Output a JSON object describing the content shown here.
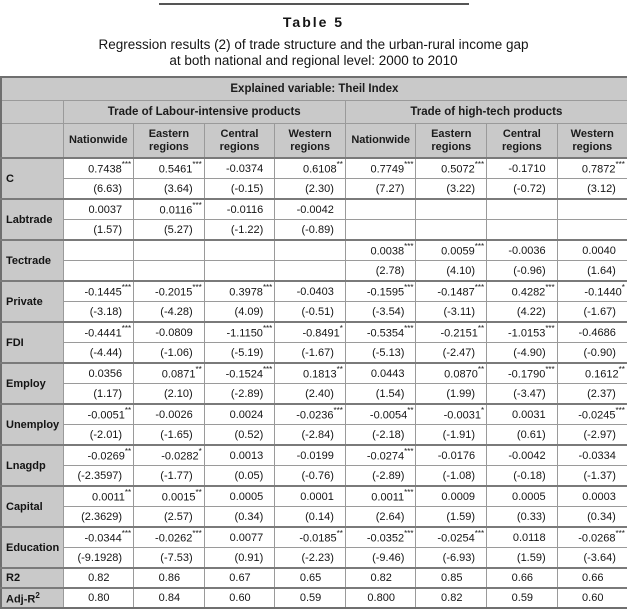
{
  "page": {
    "title": "Table 5",
    "subtitle_line1": "Regression results (2) of trade structure and the urban-rural income gap",
    "subtitle_line2": "at both national and regional level: 2000 to 2010"
  },
  "table": {
    "explained_header": "Explained variable: Theil Index",
    "groups": [
      "Trade of Labour-intensive products",
      "Trade of high-tech products"
    ],
    "columns": [
      "Nationwide",
      "Eastern regions",
      "Central regions",
      "Western regions",
      "Nationwide",
      "Eastern regions",
      "Central regions",
      "Western regions"
    ],
    "rows": [
      {
        "label": "C",
        "coef": [
          "0.7438***",
          "0.5461***",
          "-0.0374",
          "0.6108**",
          "0.7749***",
          "0.5072***",
          "-0.1710",
          "0.7872***"
        ],
        "tstat": [
          "(6.63)",
          "(3.64)",
          "(-0.15)",
          "(2.30)",
          "(7.27)",
          "(3.22)",
          "(-0.72)",
          "(3.12)"
        ]
      },
      {
        "label": "Labtrade",
        "coef": [
          "0.0037",
          "0.0116***",
          "-0.0116",
          "-0.0042",
          "",
          "",
          "",
          ""
        ],
        "tstat": [
          "(1.57)",
          "(5.27)",
          "(-1.22)",
          "(-0.89)",
          "",
          "",
          "",
          ""
        ]
      },
      {
        "label": "Tectrade",
        "coef": [
          "",
          "",
          "",
          "",
          "0.0038***",
          "0.0059***",
          "-0.0036",
          "0.0040"
        ],
        "tstat": [
          "",
          "",
          "",
          "",
          "(2.78)",
          "(4.10)",
          "(-0.96)",
          "(1.64)"
        ]
      },
      {
        "label": "Private",
        "coef": [
          "-0.1445***",
          "-0.2015***",
          "0.3978***",
          "-0.0403",
          "-0.1595***",
          "-0.1487***",
          "0.4282***",
          "-0.1440*"
        ],
        "tstat": [
          "(-3.18)",
          "(-4.28)",
          "(4.09)",
          "(-0.51)",
          "(-3.54)",
          "(-3.11)",
          "(4.22)",
          "(-1.67)"
        ]
      },
      {
        "label": "FDI",
        "coef": [
          "-0.4441***",
          "-0.0809",
          "-1.1150***",
          "-0.8491*",
          "-0.5354***",
          "-0.2151**",
          "-1.0153***",
          "-0.4686"
        ],
        "tstat": [
          "(-4.44)",
          "(-1.06)",
          "(-5.19)",
          "(-1.67)",
          "(-5.13)",
          "(-2.47)",
          "(-4.90)",
          "(-0.90)"
        ]
      },
      {
        "label": "Employ",
        "coef": [
          "0.0356",
          "0.0871**",
          "-0.1524***",
          "0.1813**",
          "0.0443",
          "0.0870**",
          "-0.1790***",
          "0.1612**"
        ],
        "tstat": [
          "(1.17)",
          "(2.10)",
          "(-2.89)",
          "(2.40)",
          "(1.54)",
          "(1.99)",
          "(-3.47)",
          "(2.37)"
        ]
      },
      {
        "label": "Unemploy",
        "coef": [
          "-0.0051**",
          "-0.0026",
          "0.0024",
          "-0.0236***",
          "-0.0054**",
          "-0.0031*",
          "0.0031",
          "-0.0245***"
        ],
        "tstat": [
          "(-2.01)",
          "(-1.65)",
          "(0.52)",
          "(-2.84)",
          "(-2.18)",
          "(-1.91)",
          "(0.61)",
          "(-2.97)"
        ]
      },
      {
        "label": "Lnagdp",
        "coef": [
          "-0.0269**",
          "-0.0282*",
          "0.0013",
          "-0.0199",
          "-0.0274***",
          "-0.0176",
          "-0.0042",
          "-0.0334"
        ],
        "tstat": [
          "(-2.3597)",
          "(-1.77)",
          "(0.05)",
          "(-0.76)",
          "(-2.89)",
          "(-1.08)",
          "(-0.18)",
          "(-1.37)"
        ]
      },
      {
        "label": "Capital",
        "coef": [
          "0.0011**",
          "0.0015**",
          "0.0005",
          "0.0001",
          "0.0011***",
          "0.0009",
          "0.0005",
          "0.0003"
        ],
        "tstat": [
          "(2.3629)",
          "(2.57)",
          "(0.34)",
          "(0.14)",
          "(2.64)",
          "(1.59)",
          "(0.33)",
          "(0.34)"
        ]
      },
      {
        "label": "Education",
        "coef": [
          "-0.0344***",
          "-0.0262***",
          "0.0077",
          "-0.0185**",
          "-0.0352***",
          "-0.0254***",
          "0.0118",
          "-0.0268***"
        ],
        "tstat": [
          "(-9.1928)",
          "(-7.53)",
          "(0.91)",
          "(-2.23)",
          "(-9.46)",
          "(-6.93)",
          "(1.59)",
          "(-3.64)"
        ]
      }
    ],
    "stat_rows": [
      {
        "label": "R2",
        "label_sup": "",
        "values": [
          "0.82",
          "0.86",
          "0.67",
          "0.65",
          "0.82",
          "0.85",
          "0.66",
          "0.66"
        ]
      },
      {
        "label": "Adj-R",
        "label_sup": "2",
        "values": [
          "0.80",
          "0.84",
          "0.60",
          "0.59",
          "0.800",
          "0.82",
          "0.59",
          "0.60"
        ]
      }
    ],
    "colors": {
      "header_bg": "#c9c9c9",
      "cell_bg": "#ffffff",
      "border": "#9a9a9a",
      "outer_border": "#6f6f6f"
    }
  }
}
